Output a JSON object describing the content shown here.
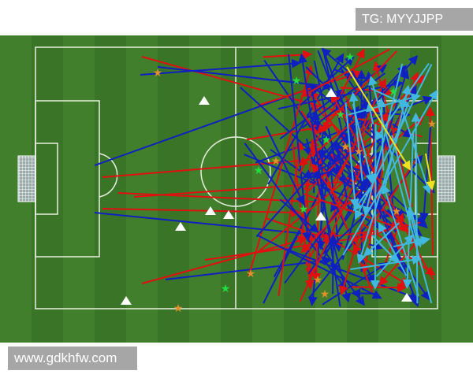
{
  "watermark_top": "TG: MYYJJPP",
  "watermark_bottom": "www.gdkhfw.com",
  "colors": {
    "red_arrows": "#e01010",
    "blue_arrows": "#1020c0",
    "cyan_arrows": "#40b8e0",
    "yellow_arrows": "#f0e020",
    "orange_star": "#e0902a",
    "green_star": "#20e040",
    "triangle": "#ffffff"
  }
}
